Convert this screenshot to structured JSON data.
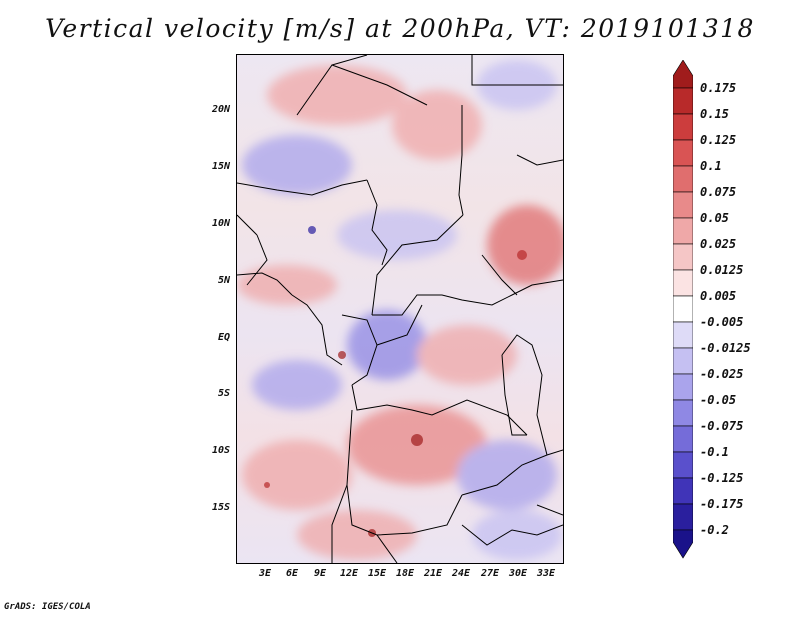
{
  "title": "Vertical velocity [m/s] at 200hPa, VT: 2019101318",
  "footer": "GrADS: IGES/COLA",
  "map": {
    "variable": "Vertical velocity",
    "units": "m/s",
    "level": "200hPa",
    "valid_time": "2019101318",
    "lat_labels": [
      "20N",
      "15N",
      "10N",
      "5N",
      "EQ",
      "5S",
      "10S",
      "15S"
    ],
    "lon_labels": [
      "3E",
      "6E",
      "9E",
      "12E",
      "15E",
      "18E",
      "21E",
      "24E",
      "27E",
      "30E",
      "33E"
    ]
  },
  "colorbar": {
    "labels": [
      "0.175",
      "0.15",
      "0.125",
      "0.1",
      "0.075",
      "0.05",
      "0.025",
      "0.0125",
      "0.005",
      "-0.005",
      "-0.0125",
      "-0.025",
      "-0.05",
      "-0.075",
      "-0.1",
      "-0.125",
      "-0.175",
      "-0.2"
    ],
    "colors": [
      "#a01c1c",
      "#b82a2a",
      "#cc3d3d",
      "#d95454",
      "#e06e6e",
      "#e88a8a",
      "#efa8a8",
      "#f5c6c6",
      "#fbe3e3",
      "#ffffff",
      "#dedbf7",
      "#c5c0f2",
      "#aaa4ec",
      "#8f88e4",
      "#756cd9",
      "#5a50cc",
      "#4034b8",
      "#2a1f9e",
      "#1a128a"
    ]
  }
}
